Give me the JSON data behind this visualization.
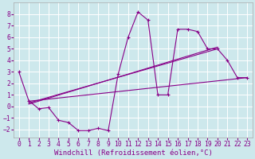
{
  "bg_color": "#cde8ec",
  "grid_color": "#ffffff",
  "line_color": "#880088",
  "xlabel": "Windchill (Refroidissement éolien,°C)",
  "xlabel_fontsize": 6.5,
  "tick_fontsize": 5.8,
  "xlim": [
    -0.5,
    23.5
  ],
  "ylim": [
    -2.7,
    9.0
  ],
  "xticks": [
    0,
    1,
    2,
    3,
    4,
    5,
    6,
    7,
    8,
    9,
    10,
    11,
    12,
    13,
    14,
    15,
    16,
    17,
    18,
    19,
    20,
    21,
    22,
    23
  ],
  "yticks": [
    -2,
    -1,
    0,
    1,
    2,
    3,
    4,
    5,
    6,
    7,
    8
  ],
  "main_x": [
    0,
    1,
    2,
    3,
    4,
    5,
    6,
    7,
    8,
    9,
    10,
    11,
    12,
    13,
    14,
    15,
    16,
    17,
    18,
    19,
    20,
    21,
    22,
    23
  ],
  "main_y": [
    3,
    0.5,
    -0.2,
    -0.1,
    -1.2,
    -1.4,
    -2.1,
    -2.1,
    -1.9,
    -2.1,
    2.8,
    6.0,
    8.2,
    7.5,
    1.0,
    1.0,
    6.7,
    6.7,
    6.5,
    5.0,
    5.0,
    4.0,
    2.5,
    2.5
  ],
  "trend1_x": [
    1,
    23
  ],
  "trend1_y": [
    0.45,
    2.5
  ],
  "trend2_x": [
    1,
    20
  ],
  "trend2_y": [
    0.3,
    5.0
  ],
  "trend3_x": [
    1,
    20
  ],
  "trend3_y": [
    0.2,
    5.15
  ]
}
